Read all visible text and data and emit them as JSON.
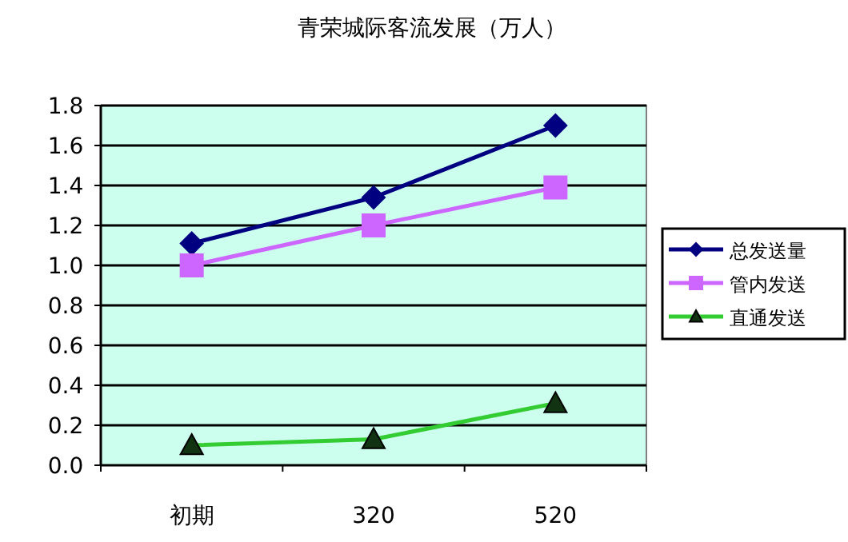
{
  "chart_data": {
    "type": "line",
    "title": "青荣城际客流发展（万人）",
    "categories": [
      "初期",
      "320",
      "520"
    ],
    "series": [
      {
        "name": "总发送量",
        "color": "#000080",
        "marker": "diamond",
        "values": [
          1.11,
          1.34,
          1.7
        ]
      },
      {
        "name": "管内发送",
        "color": "#cc66ff",
        "marker": "square",
        "values": [
          1.0,
          1.2,
          1.39
        ]
      },
      {
        "name": "直通发送",
        "color": "#33cc33",
        "marker": "triangle",
        "values": [
          0.1,
          0.13,
          0.31
        ]
      }
    ],
    "ylim": [
      0,
      1.8
    ],
    "yticks": [
      {
        "value": 0,
        "label": "0.0"
      },
      0.2,
      0.4,
      0.6,
      0.8,
      {
        "value": 1,
        "label": "1.0"
      },
      1.2,
      1.4,
      1.6,
      1.8
    ],
    "grid": "y",
    "legend": "right",
    "line_style": "solid"
  }
}
